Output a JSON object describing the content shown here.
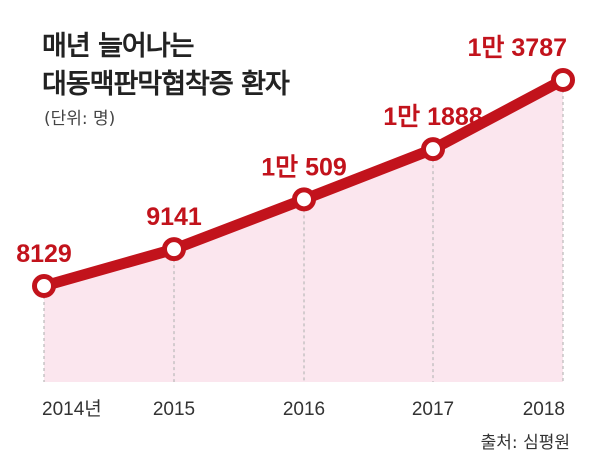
{
  "title_line1": "매년 늘어나는",
  "title_line2": "대동맥판막협착증 환자",
  "unit_label": "(단위: 명)",
  "source": "출처: 심평원",
  "colors": {
    "line": "#c2131c",
    "area": "#fbe6ee",
    "point_fill": "#ffffff",
    "text": "#222222"
  },
  "chart_data": {
    "type": "area",
    "categories": [
      "2014년",
      "2015",
      "2016",
      "2017",
      "2018"
    ],
    "values": [
      8129,
      9141,
      10509,
      11888,
      13787
    ],
    "data_labels": [
      "8129",
      "9141",
      "1만 509",
      "1만 1888",
      "1만 3787"
    ],
    "title": "매년 늘어나는 대동맥판막협착증 환자",
    "unit": "(단위: 명)",
    "grid": false,
    "legend": "none"
  }
}
